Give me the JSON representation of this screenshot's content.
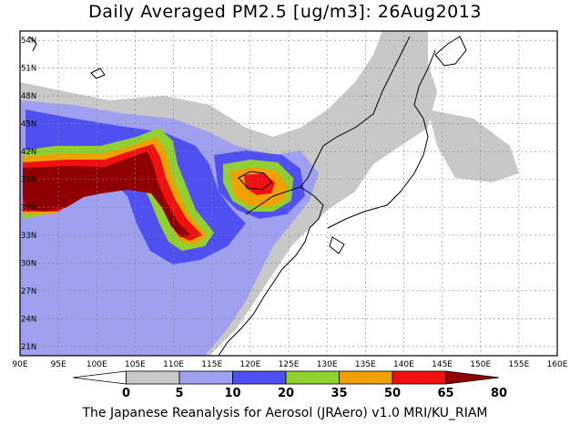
{
  "title": "Daily Averaged PM2.5 [ug/m3]: 26Aug2013",
  "footer": "The Japanese Reanalysis for Aerosol (JRAero) v1.0 MRI/KU_RIAM",
  "map": {
    "lon_range": [
      90,
      160
    ],
    "lat_range": [
      20,
      55
    ],
    "lon_ticks": [
      "90E",
      "95E",
      "100E",
      "105E",
      "110E",
      "115E",
      "120E",
      "125E",
      "130E",
      "135E",
      "140E",
      "145E",
      "150E",
      "155E",
      "160E"
    ],
    "lat_ticks": [
      "21N",
      "24N",
      "27N",
      "30N",
      "33N",
      "36N",
      "39N",
      "42N",
      "45N",
      "48N",
      "51N",
      "54N"
    ],
    "grid": true
  },
  "colorbar": {
    "levels": [
      "0",
      "5",
      "10",
      "20",
      "35",
      "50",
      "65",
      "80"
    ],
    "colors": [
      "#ffffff",
      "#c8c8c8",
      "#a0a0f0",
      "#5050f0",
      "#90d030",
      "#f0a000",
      "#f01010",
      "#900000"
    ]
  }
}
